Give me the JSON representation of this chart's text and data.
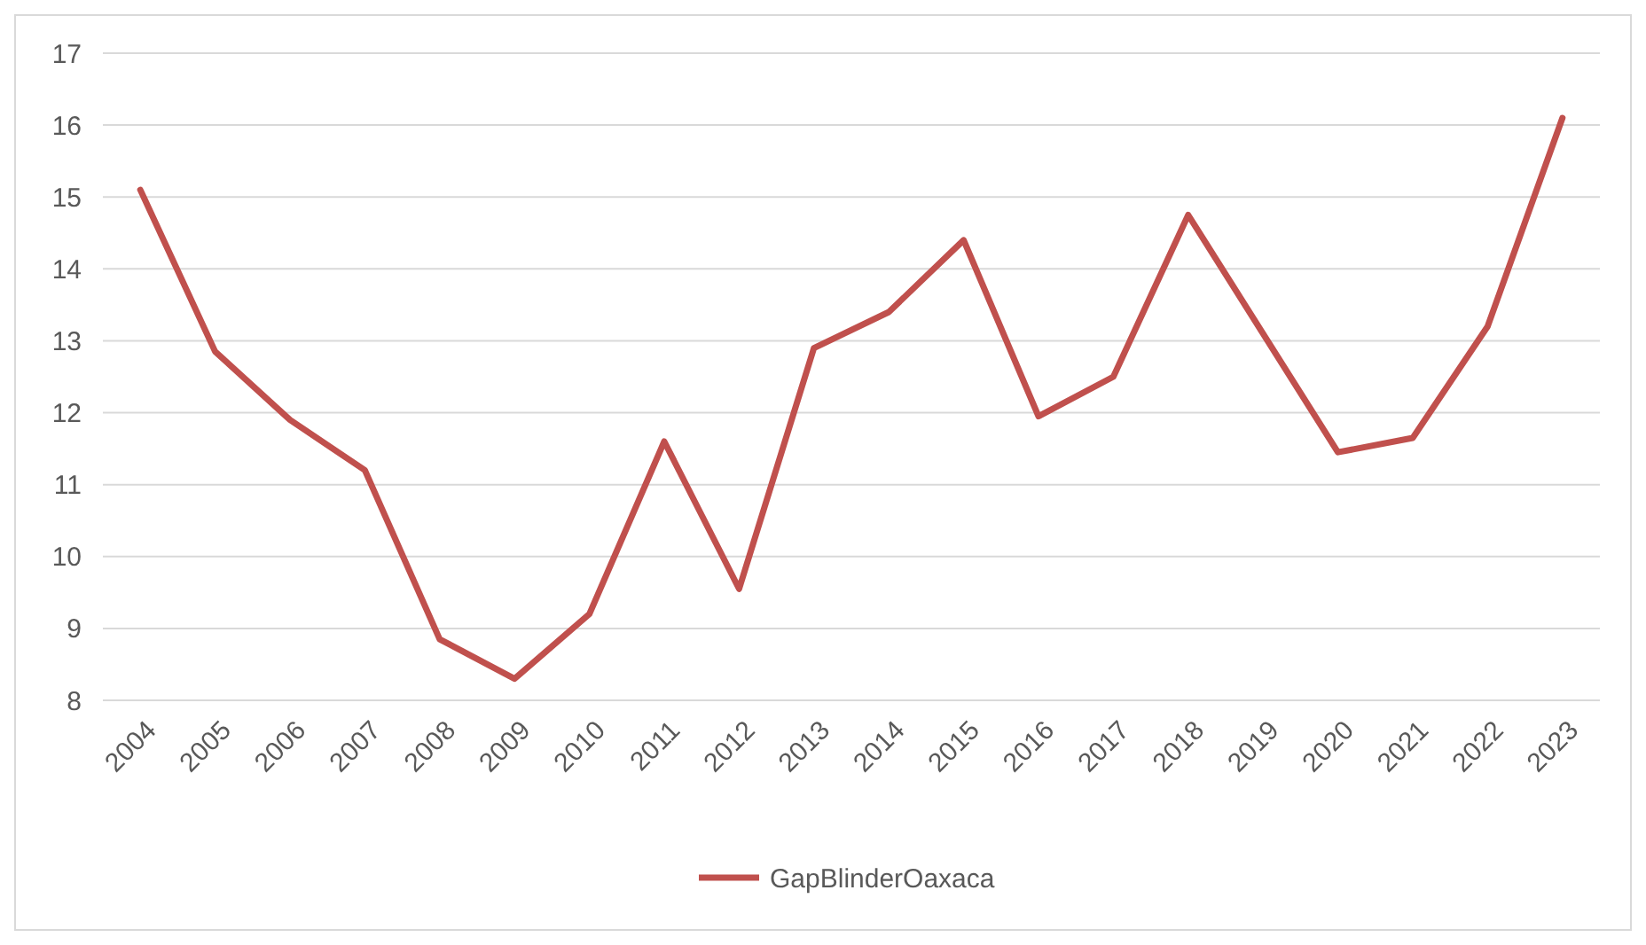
{
  "chart_data": {
    "type": "line",
    "categories": [
      "2004",
      "2005",
      "2006",
      "2007",
      "2008",
      "2009",
      "2010",
      "2011",
      "2012",
      "2013",
      "2014",
      "2015",
      "2016",
      "2017",
      "2018",
      "2019",
      "2020",
      "2021",
      "2022",
      "2023"
    ],
    "series": [
      {
        "name": "GapBlinderOaxaca",
        "color": "#c0504d",
        "values": [
          15.1,
          12.85,
          11.9,
          11.2,
          8.85,
          8.3,
          9.2,
          11.6,
          9.55,
          12.9,
          13.4,
          14.4,
          11.95,
          12.5,
          14.75,
          13.1,
          11.45,
          11.65,
          13.2,
          16.1
        ]
      }
    ],
    "ylim": [
      8,
      17
    ],
    "yticks": [
      8,
      9,
      10,
      11,
      12,
      13,
      14,
      15,
      16,
      17
    ],
    "grid": "y",
    "legend": "bottom",
    "marker": "none",
    "line_style": "solid"
  }
}
